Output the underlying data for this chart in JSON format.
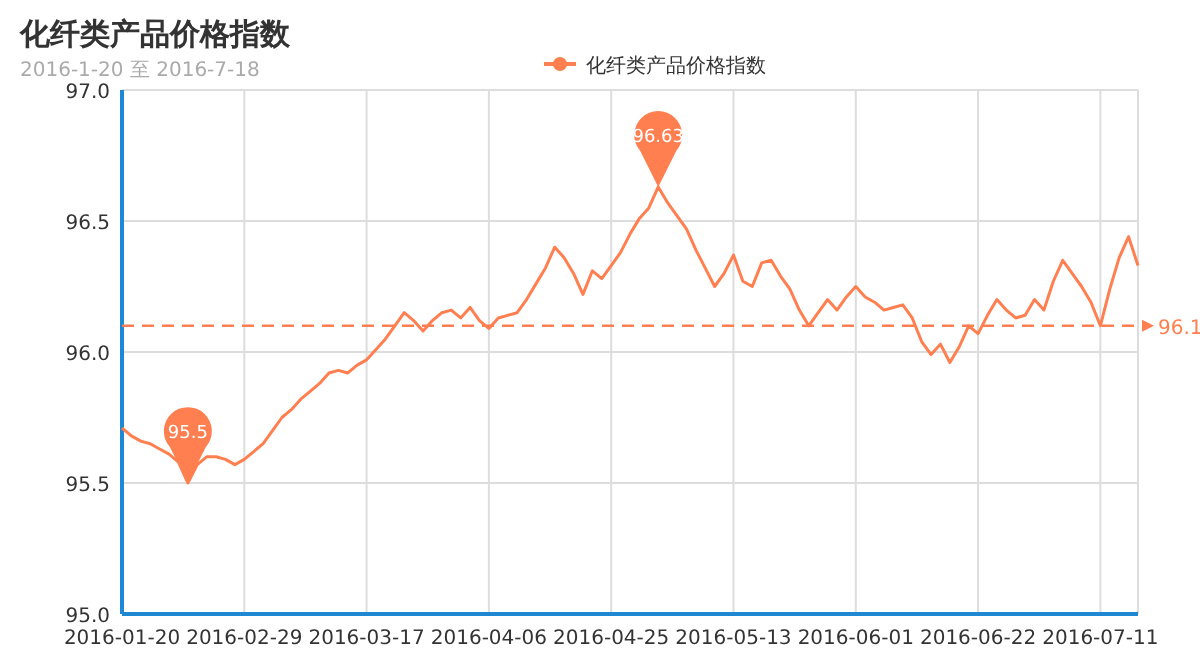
{
  "chart_data": {
    "type": "line",
    "title": "化纤类产品价格指数",
    "subtitle": "2016-1-20 至 2016-7-18",
    "categories": [
      "2016-01-20",
      null,
      null,
      null,
      null,
      null,
      null,
      null,
      null,
      null,
      null,
      null,
      null,
      "2016-02-29",
      null,
      null,
      null,
      null,
      null,
      null,
      null,
      null,
      null,
      null,
      null,
      null,
      "2016-03-17",
      null,
      null,
      null,
      null,
      null,
      null,
      null,
      null,
      null,
      null,
      null,
      null,
      "2016-04-06",
      null,
      null,
      null,
      null,
      null,
      null,
      null,
      null,
      null,
      null,
      null,
      null,
      "2016-04-25",
      null,
      null,
      null,
      null,
      null,
      null,
      null,
      null,
      null,
      null,
      null,
      null,
      "2016-05-13",
      null,
      null,
      null,
      null,
      null,
      null,
      null,
      null,
      null,
      null,
      null,
      null,
      "2016-06-01",
      null,
      null,
      null,
      null,
      null,
      null,
      null,
      null,
      null,
      null,
      null,
      null,
      "2016-06-22",
      null,
      null,
      null,
      null,
      null,
      null,
      null,
      null,
      null,
      null,
      null,
      null,
      "2016-07-11",
      null,
      null,
      null,
      null
    ],
    "series": [
      {
        "name": "化纤类产品价格指数",
        "color": "#ff7f50",
        "values": [
          95.71,
          95.68,
          95.66,
          95.65,
          95.63,
          95.61,
          95.58,
          95.5,
          95.57,
          95.6,
          95.6,
          95.59,
          95.57,
          95.59,
          95.62,
          95.65,
          95.7,
          95.75,
          95.78,
          95.82,
          95.85,
          95.88,
          95.92,
          95.93,
          95.92,
          95.95,
          95.97,
          96.01,
          96.05,
          96.1,
          96.15,
          96.12,
          96.08,
          96.12,
          96.15,
          96.16,
          96.13,
          96.17,
          96.12,
          96.09,
          96.13,
          96.14,
          96.15,
          96.2,
          96.26,
          96.32,
          96.4,
          96.36,
          96.3,
          96.22,
          96.31,
          96.28,
          96.33,
          96.38,
          96.45,
          96.51,
          96.55,
          96.63,
          96.57,
          96.52,
          96.47,
          96.39,
          96.32,
          96.25,
          96.3,
          96.37,
          96.27,
          96.25,
          96.34,
          96.35,
          96.29,
          96.24,
          96.16,
          96.1,
          96.15,
          96.2,
          96.16,
          96.21,
          96.25,
          96.21,
          96.19,
          96.16,
          96.17,
          96.18,
          96.13,
          96.04,
          95.99,
          96.03,
          95.96,
          96.02,
          96.1,
          96.07,
          96.14,
          96.2,
          96.16,
          96.13,
          96.14,
          96.2,
          96.16,
          96.27,
          96.35,
          96.3,
          96.25,
          96.19,
          96.1,
          96.24,
          96.36,
          96.44,
          96.33
        ]
      }
    ],
    "ylim": [
      95.0,
      97.0
    ],
    "yticks": [
      {
        "value": 95.0,
        "label": "95.0"
      },
      {
        "value": 95.5,
        "label": "95.5"
      },
      {
        "value": 96.0,
        "label": "96.0"
      },
      {
        "value": 96.5,
        "label": "96.5"
      },
      {
        "value": 97.0,
        "label": "97.0"
      }
    ],
    "grid": true,
    "legend": "top",
    "line_style": "solid",
    "ref_lines": [
      {
        "axis": "y",
        "value": 96.1,
        "label": "96.1",
        "line_style": "dashed",
        "color": "#ff7f50"
      }
    ],
    "annotations": [
      {
        "text": "95.5",
        "y": 95.5
      },
      {
        "text": "96.63",
        "y": 96.63
      }
    ]
  }
}
